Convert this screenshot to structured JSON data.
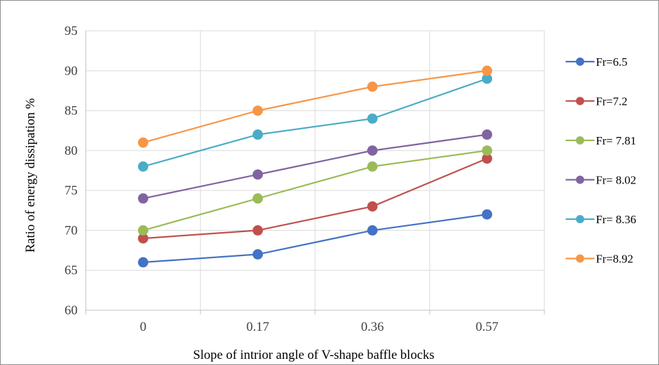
{
  "chart_data": {
    "type": "line",
    "title": "",
    "xlabel": "Slope of  intrior angle  of V-shape baffle blocks",
    "ylabel": "Ratio of energy dissipation %",
    "categories": [
      "0",
      "0.17",
      "0.36",
      "0.57"
    ],
    "ylim": [
      60,
      95
    ],
    "yticks": [
      60,
      65,
      70,
      75,
      80,
      85,
      90,
      95
    ],
    "grid": true,
    "legend_position": "right",
    "series": [
      {
        "name": "Fr=6.5",
        "color": "#4472C4",
        "values": [
          66,
          67,
          70,
          72
        ]
      },
      {
        "name": "Fr=7.2",
        "color": "#C0504D",
        "values": [
          69,
          70,
          73,
          79
        ]
      },
      {
        "name": "Fr= 7.81",
        "color": "#9BBB59",
        "values": [
          70,
          74,
          78,
          80
        ]
      },
      {
        "name": "Fr= 8.02",
        "color": "#8064A2",
        "values": [
          74,
          77,
          80,
          82
        ]
      },
      {
        "name": "Fr= 8.36",
        "color": "#4BACC6",
        "values": [
          78,
          82,
          84,
          89
        ]
      },
      {
        "name": "Fr=8.92",
        "color": "#F79646",
        "values": [
          81,
          85,
          88,
          90
        ]
      }
    ]
  }
}
